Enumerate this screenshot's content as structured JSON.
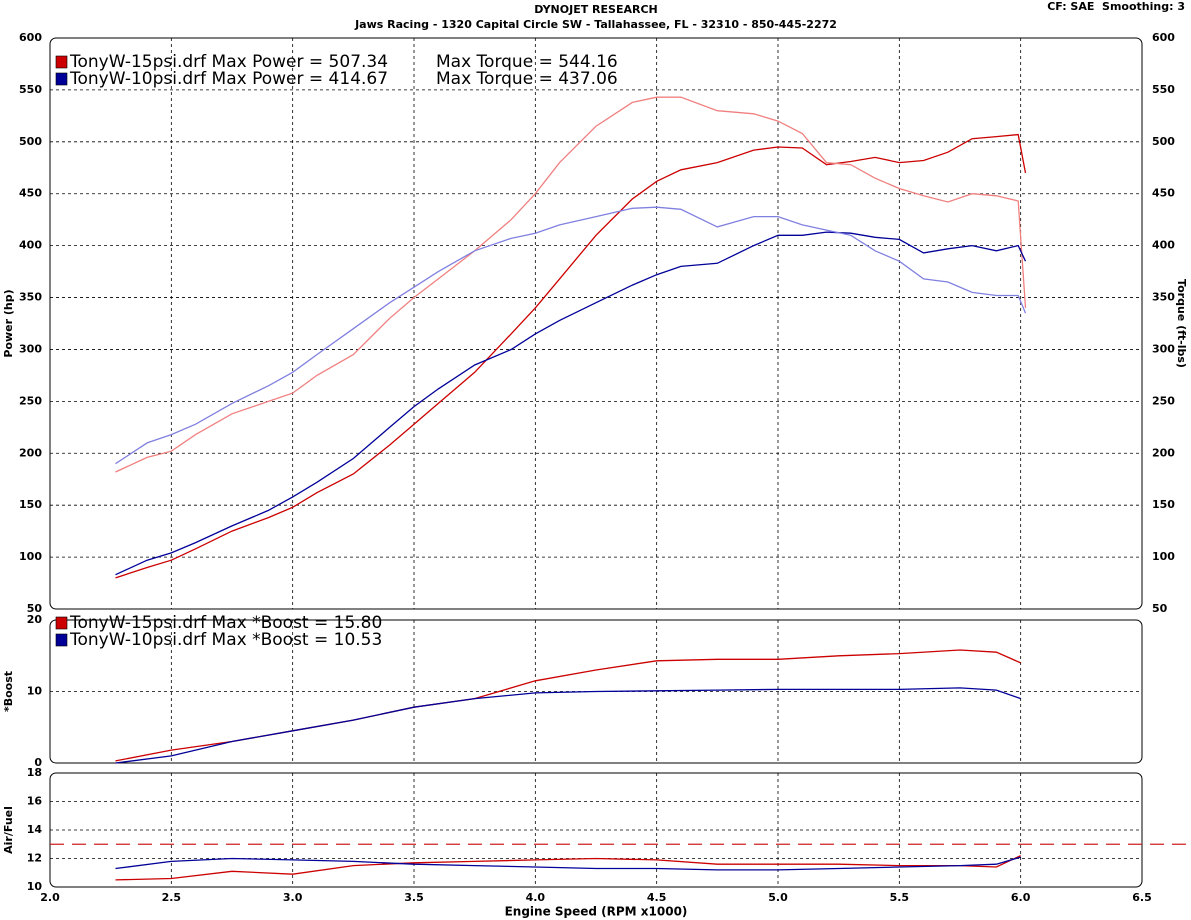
{
  "header": {
    "title": "DYNOJET RESEARCH",
    "subtitle": "Jaws Racing - 1320 Capital Circle SW - Tallahassee, FL - 32310 - 850-445-2272",
    "settings": "CF: SAE  Smoothing: 3"
  },
  "chart_data": [
    {
      "type": "line",
      "y_label": "Power (hp)",
      "y2_label": "Torque (ft-lbs)",
      "x": [
        2.27,
        2.4,
        2.5,
        2.6,
        2.75,
        2.9,
        3.0,
        3.1,
        3.25,
        3.4,
        3.5,
        3.6,
        3.75,
        3.9,
        4.0,
        4.1,
        4.25,
        4.4,
        4.5,
        4.6,
        4.75,
        4.9,
        5.0,
        5.1,
        5.2,
        5.3,
        5.4,
        5.5,
        5.6,
        5.7,
        5.8,
        5.9,
        5.99,
        6.02
      ],
      "ylim": [
        50,
        600
      ],
      "yticks": [
        50,
        100,
        150,
        200,
        250,
        300,
        350,
        400,
        450,
        500,
        550,
        600
      ],
      "y2lim": [
        50,
        600
      ],
      "y2ticks": [
        50,
        100,
        150,
        200,
        250,
        300,
        350,
        400,
        450,
        500,
        550,
        600
      ],
      "grid": true,
      "series": [
        {
          "name": "TonyW-15psi.drf Max Power = 507.34",
          "color": "#cc0000",
          "values": [
            80,
            90,
            97,
            108,
            125,
            138,
            148,
            162,
            180,
            208,
            228,
            248,
            278,
            315,
            340,
            368,
            410,
            445,
            462,
            473,
            480,
            492,
            495,
            494,
            478,
            481,
            485,
            480,
            482,
            490,
            503,
            505,
            507,
            470
          ]
        },
        {
          "name": "Max Torque = 544.16",
          "color": "#f08080",
          "axis": "y2",
          "values": [
            182,
            196,
            202,
            218,
            238,
            250,
            258,
            275,
            295,
            330,
            350,
            368,
            395,
            425,
            450,
            480,
            515,
            538,
            543,
            543,
            530,
            527,
            520,
            508,
            480,
            478,
            465,
            455,
            448,
            442,
            450,
            448,
            443,
            340
          ]
        },
        {
          "name": "TonyW-10psi.drf Max Power = 414.67",
          "color": "#000099",
          "values": [
            83,
            97,
            104,
            114,
            130,
            145,
            158,
            172,
            195,
            225,
            245,
            262,
            285,
            300,
            315,
            328,
            345,
            362,
            372,
            380,
            383,
            400,
            410,
            410,
            413,
            412,
            408,
            406,
            393,
            397,
            400,
            395,
            400,
            385
          ]
        },
        {
          "name": "Max Torque = 437.06",
          "color": "#8080e0",
          "axis": "y2",
          "values": [
            190,
            210,
            218,
            228,
            248,
            265,
            278,
            295,
            320,
            345,
            360,
            375,
            395,
            407,
            412,
            420,
            428,
            436,
            437,
            435,
            418,
            428,
            428,
            420,
            415,
            410,
            395,
            385,
            368,
            365,
            355,
            352,
            352,
            335
          ]
        }
      ]
    },
    {
      "type": "line",
      "y_label": "*Boost",
      "x": [
        2.27,
        2.5,
        2.75,
        3.0,
        3.25,
        3.5,
        3.75,
        4.0,
        4.25,
        4.5,
        4.75,
        5.0,
        5.25,
        5.5,
        5.75,
        5.9,
        6.0
      ],
      "ylim": [
        0,
        20
      ],
      "yticks": [
        0,
        10,
        20
      ],
      "grid": true,
      "series": [
        {
          "name": "TonyW-15psi.drf Max *Boost = 15.80",
          "color": "#cc0000",
          "values": [
            0.3,
            1.8,
            3,
            4.5,
            6,
            7.8,
            9,
            11.5,
            13,
            14.3,
            14.5,
            14.5,
            15,
            15.3,
            15.8,
            15.5,
            14
          ]
        },
        {
          "name": "TonyW-10psi.drf Max *Boost = 10.53",
          "color": "#000099",
          "values": [
            0,
            1,
            3,
            4.5,
            6,
            7.8,
            9,
            9.8,
            10,
            10.1,
            10.2,
            10.3,
            10.3,
            10.3,
            10.5,
            10.2,
            9
          ]
        }
      ]
    },
    {
      "type": "line",
      "y_label": "Air/Fuel",
      "x_label": "Engine Speed (RPM x1000)",
      "x": [
        2.27,
        2.5,
        2.75,
        3.0,
        3.25,
        3.5,
        3.75,
        4.0,
        4.25,
        4.5,
        4.75,
        5.0,
        5.25,
        5.5,
        5.75,
        5.9,
        6.0
      ],
      "xlim": [
        2.0,
        6.5
      ],
      "xticks": [
        {
          "value": 2.0,
          "label": "2.0"
        },
        2.5,
        {
          "value": 3.0,
          "label": "3.0"
        },
        3.5,
        {
          "value": 4.0,
          "label": "4.0"
        },
        4.5,
        {
          "value": 5.0,
          "label": "5.0"
        },
        5.5,
        {
          "value": 6.0,
          "label": "6.0"
        },
        6.5
      ],
      "ylim": [
        10,
        18
      ],
      "yticks": [
        10,
        12,
        14,
        16,
        18
      ],
      "grid": true,
      "reference_line": {
        "value": 13,
        "color": "#cc2222"
      },
      "series": [
        {
          "color": "#cc0000",
          "values": [
            10.5,
            10.6,
            11.1,
            10.9,
            11.5,
            11.7,
            11.8,
            11.9,
            12,
            11.9,
            11.6,
            11.6,
            11.6,
            11.5,
            11.5,
            11.4,
            12.2
          ]
        },
        {
          "color": "#000099",
          "values": [
            11.3,
            11.8,
            12,
            11.9,
            11.8,
            11.6,
            11.5,
            11.4,
            11.3,
            11.3,
            11.2,
            11.2,
            11.3,
            11.4,
            11.5,
            11.6,
            12.1
          ]
        }
      ]
    }
  ]
}
